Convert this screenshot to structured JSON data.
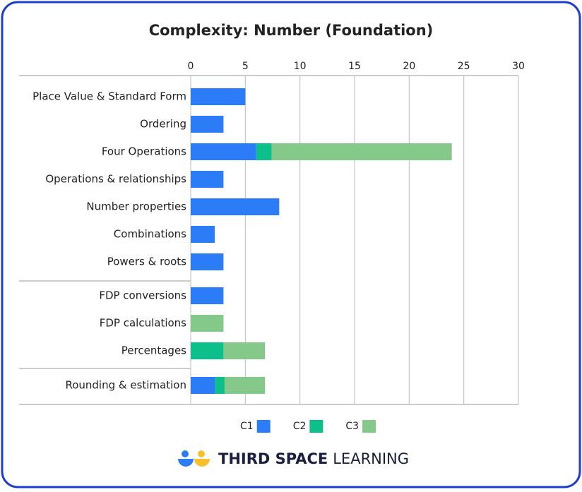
{
  "chart_data": {
    "type": "stacked-bar-horizontal",
    "title": "Complexity: Number (Foundation)",
    "categories": [
      "Place Value & Standard Form",
      "Ordering",
      "Four Operations",
      "Operations & relationships",
      "Number properties",
      "Combinations",
      "Powers & roots",
      "FDP conversions",
      "FDP calculations",
      "Percentages",
      "Rounding & estimation"
    ],
    "series": [
      {
        "name": "C1",
        "color": "#2b7cf6",
        "values": [
          5,
          3,
          6,
          3,
          8.1,
          2.2,
          3,
          3,
          0,
          0,
          2.2
        ]
      },
      {
        "name": "C2",
        "color": "#0cbf8b",
        "values": [
          0,
          0,
          1.4,
          0,
          0,
          0,
          0,
          0,
          0,
          3,
          0.9
        ]
      },
      {
        "name": "C3",
        "color": "#85c98a",
        "values": [
          0,
          0,
          16.5,
          0,
          0,
          0,
          0,
          0,
          3,
          3.8,
          3.7
        ]
      }
    ],
    "xlim": [
      0,
      30
    ],
    "xticks": [
      0,
      5,
      10,
      15,
      20,
      25,
      30
    ],
    "grid": true
  },
  "brand": {
    "strong": "THIRD SPACE",
    "light": "LEARNING"
  }
}
